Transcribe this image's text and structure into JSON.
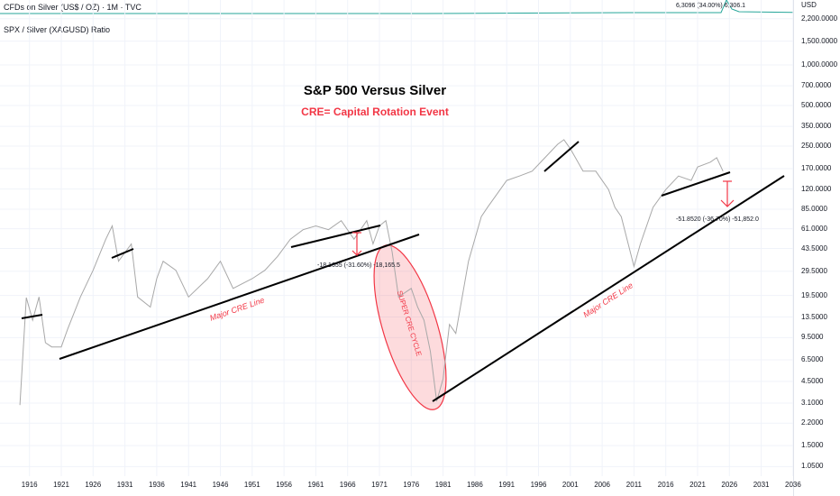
{
  "header": {
    "symbol_title": "CFDs on Silver (US$ / OZ) · 1M · TVC",
    "mini_readout": "6,3096 (34.00%) 6,306.1",
    "currency": "USD"
  },
  "indicator_title": "SPX / Silver (XAGUSD) Ratio",
  "annotations": {
    "title": "S&P 500 Versus Silver",
    "subtitle": "CRE= Capital Rotation Event",
    "trend_label_1": "Major CRE Line",
    "trend_label_2": "Major CRE Line",
    "ellipse_label": "SUPER CRE CYCLE",
    "measure_1": "-18.1655 (-31.60%) -18,165.5",
    "measure_2": "-51.8520 (-36.70%) -51,852.0"
  },
  "colors": {
    "line": "#a8a8a8",
    "accent": "#f23645",
    "trend": "#000000"
  },
  "chart_data": {
    "type": "line",
    "title": "S&P 500 Versus Silver",
    "scale": "log",
    "ylim": [
      1.0,
      2200
    ],
    "xlim": [
      1913,
      2038
    ],
    "y_ticks": [
      "2,200.0000",
      "1,500.0000",
      "1,000.0000",
      "700.0000",
      "500.0000",
      "350.0000",
      "250.0000",
      "170.0000",
      "120.0000",
      "85.0000",
      "61.0000",
      "43.5000",
      "29.5000",
      "19.5000",
      "13.5000",
      "9.5000",
      "6.5000",
      "4.5000",
      "3.1000",
      "2.2000",
      "1.5000",
      "1.0500"
    ],
    "x_ticks": [
      "1916",
      "1921",
      "1926",
      "1931",
      "1936",
      "1941",
      "1946",
      "1951",
      "1956",
      "1961",
      "1966",
      "1971",
      "1976",
      "1981",
      "1986",
      "1991",
      "1996",
      "2001",
      "2006",
      "2011",
      "2016",
      "2021",
      "2026",
      "2031",
      "2036"
    ],
    "series": [
      {
        "name": "SPX / Silver (XAGUSD) Ratio",
        "points": [
          [
            1914.5,
            3.0
          ],
          [
            1915.5,
            18.8
          ],
          [
            1916.5,
            12.8
          ],
          [
            1917.5,
            19
          ],
          [
            1918.5,
            8.7
          ],
          [
            1919.5,
            8.1
          ],
          [
            1921,
            8.1
          ],
          [
            1922,
            11
          ],
          [
            1924,
            19
          ],
          [
            1926,
            30
          ],
          [
            1928,
            51
          ],
          [
            1929,
            64
          ],
          [
            1930,
            35
          ],
          [
            1932,
            47
          ],
          [
            1933,
            19
          ],
          [
            1935,
            16
          ],
          [
            1936,
            26
          ],
          [
            1937,
            35
          ],
          [
            1939,
            30
          ],
          [
            1941,
            19
          ],
          [
            1944,
            26
          ],
          [
            1946,
            35
          ],
          [
            1948,
            22
          ],
          [
            1951,
            26
          ],
          [
            1953,
            30
          ],
          [
            1955,
            38
          ],
          [
            1957,
            51
          ],
          [
            1959,
            60
          ],
          [
            1961,
            64
          ],
          [
            1963,
            60
          ],
          [
            1965,
            70
          ],
          [
            1967,
            51
          ],
          [
            1969,
            70
          ],
          [
            1970,
            47
          ],
          [
            1971,
            64
          ],
          [
            1972,
            70
          ],
          [
            1973,
            41
          ],
          [
            1974,
            19
          ],
          [
            1976,
            22
          ],
          [
            1977,
            16
          ],
          [
            1978,
            12.8
          ],
          [
            1979,
            7.5
          ],
          [
            1980,
            3.2
          ],
          [
            1981,
            4.7
          ],
          [
            1982,
            11.9
          ],
          [
            1983,
            10.2
          ],
          [
            1985,
            35
          ],
          [
            1987,
            75
          ],
          [
            1988,
            88
          ],
          [
            1991,
            139
          ],
          [
            1993,
            150
          ],
          [
            1995,
            163
          ],
          [
            1997,
            205
          ],
          [
            1999,
            258
          ],
          [
            2000,
            279
          ],
          [
            2001,
            239
          ],
          [
            2003,
            163
          ],
          [
            2005,
            163
          ],
          [
            2007,
            119
          ],
          [
            2008,
            88
          ],
          [
            2009,
            75
          ],
          [
            2011,
            32
          ],
          [
            2012,
            47
          ],
          [
            2014,
            88
          ],
          [
            2016,
            119
          ],
          [
            2018,
            150
          ],
          [
            2020,
            139
          ],
          [
            2021,
            175
          ],
          [
            2023,
            190
          ],
          [
            2024,
            205
          ],
          [
            2025,
            163
          ]
        ]
      }
    ]
  }
}
